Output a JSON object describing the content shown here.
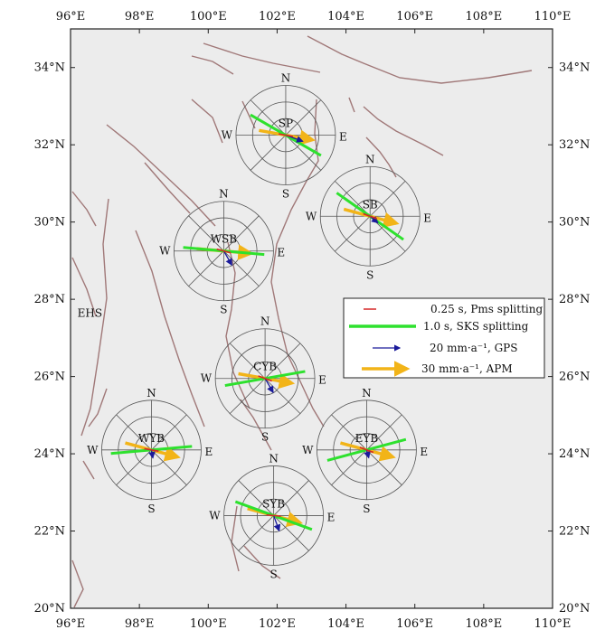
{
  "map": {
    "lon_range": [
      96,
      110
    ],
    "lat_range": [
      20,
      35
    ],
    "x_ticks": [
      "96°E",
      "98°E",
      "100°E",
      "102°E",
      "104°E",
      "106°E",
      "108°E",
      "110°E"
    ],
    "y_ticks": [
      "20°N",
      "22°N",
      "24°N",
      "26°N",
      "28°N",
      "30°N",
      "32°N",
      "34°N"
    ],
    "region_label": "EHS",
    "region_pos": {
      "lon": 96.2,
      "lat": 27.55
    }
  },
  "directions": {
    "n": "N",
    "s": "S",
    "e": "E",
    "w": "W"
  },
  "stations": [
    {
      "name": "SP",
      "lon": 102.25,
      "lat": 32.25,
      "pms": 100,
      "sks": 120,
      "gps_dir": 110,
      "gps_len": 0.9,
      "apm_dir": 100
    },
    {
      "name": "SB",
      "lon": 104.7,
      "lat": 30.15,
      "pms": 110,
      "sks": 125,
      "gps_dir": 130,
      "gps_len": 0.5,
      "apm_dir": 105
    },
    {
      "name": "WSB",
      "lon": 100.45,
      "lat": 29.25,
      "pms": 105,
      "sks": 95,
      "gps_dir": 150,
      "gps_len": 0.8,
      "apm_dir": 95
    },
    {
      "name": "CYB",
      "lon": 101.65,
      "lat": 25.95,
      "pms": 110,
      "sks": 80,
      "gps_dir": 150,
      "gps_len": 0.8,
      "apm_dir": 100
    },
    {
      "name": "WYB",
      "lon": 98.35,
      "lat": 24.1,
      "pms": 100,
      "sks": 85,
      "gps_dir": 170,
      "gps_len": 0.4,
      "apm_dir": 105
    },
    {
      "name": "EYB",
      "lon": 104.6,
      "lat": 24.1,
      "pms": 110,
      "sks": 75,
      "gps_dir": 165,
      "gps_len": 0.4,
      "apm_dir": 105
    },
    {
      "name": "SYB",
      "lon": 101.9,
      "lat": 22.4,
      "pms": 95,
      "sks": 110,
      "gps_dir": 160,
      "gps_len": 0.8,
      "apm_dir": 105
    }
  ],
  "legend": {
    "items": [
      {
        "label": "0.25 s, Pms splitting",
        "color": "#d62728",
        "kind": "pms"
      },
      {
        "label": "1.0 s, SKS splitting",
        "color": "#2ee12e",
        "kind": "sks"
      },
      {
        "label": "20 mm·a⁻¹, GPS",
        "color": "#1a1a9a",
        "kind": "gps"
      },
      {
        "label": "30 mm·a⁻¹, APM",
        "color": "#f2b418",
        "kind": "apm"
      }
    ]
  },
  "colors": {
    "fault": "#a07878",
    "rose": "#555555",
    "background": "#ececec",
    "pms": "#d62728",
    "sks": "#2ee12e",
    "gps": "#1a1a9a",
    "apm": "#f2b418"
  }
}
